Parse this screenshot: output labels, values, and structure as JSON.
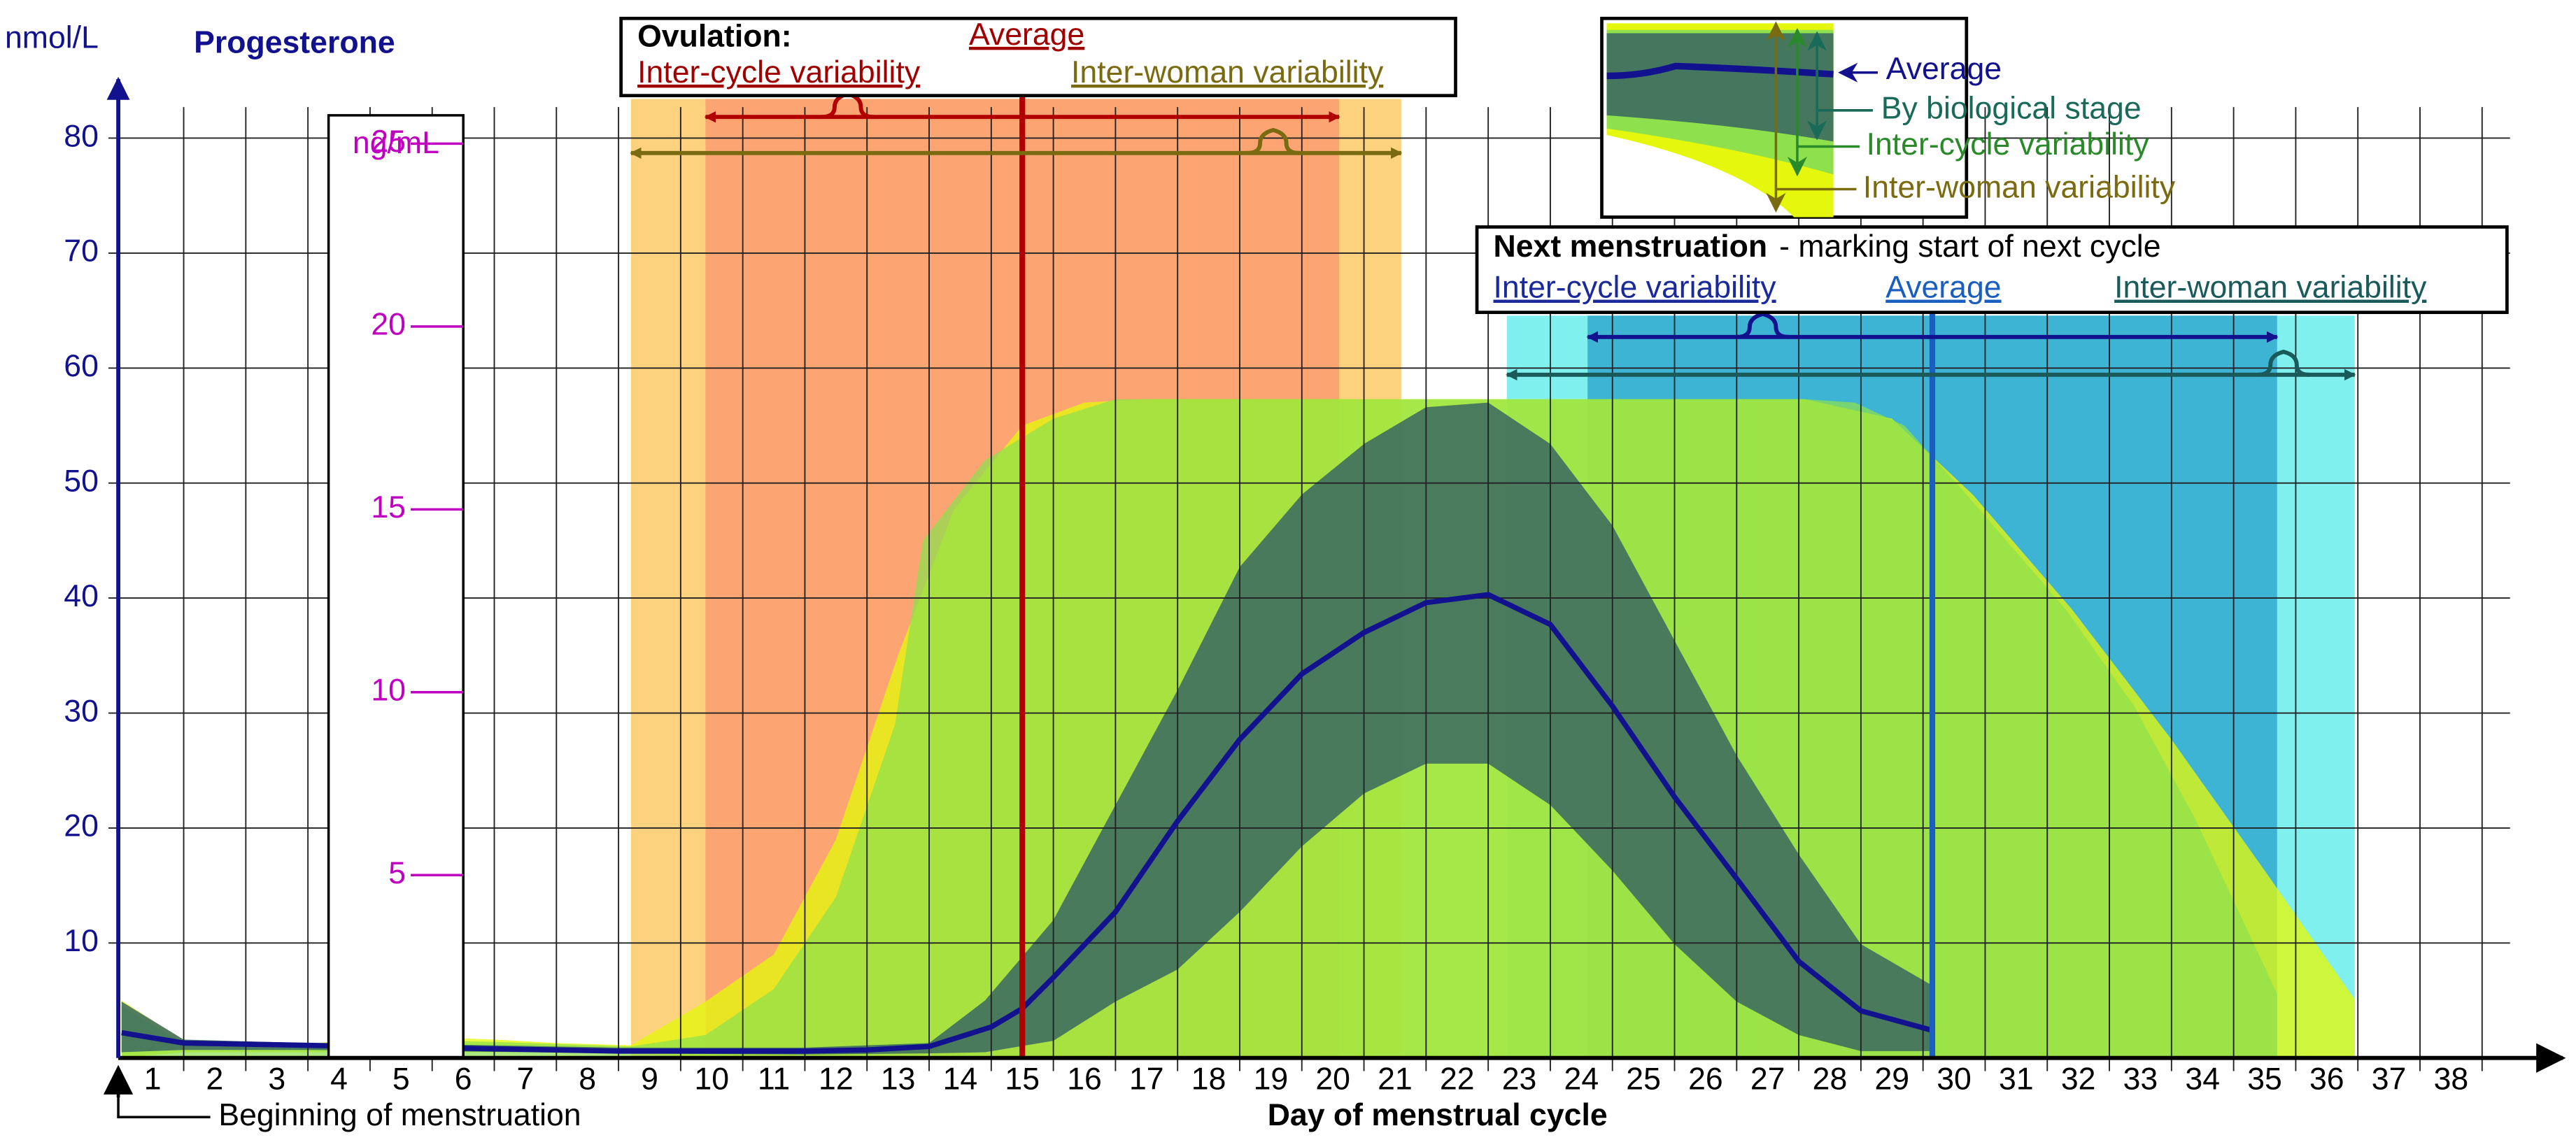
{
  "chart_data": {
    "type": "band",
    "title": "Progesterone",
    "y_label": "nmol/L",
    "y2_label": "ng/mL",
    "x_label": "Day of menstrual cycle",
    "start_label": "Beginning of menstruation",
    "xlim": [
      0.5,
      39.8
    ],
    "xticks": [
      1,
      2,
      3,
      4,
      5,
      6,
      7,
      8,
      9,
      10,
      11,
      12,
      13,
      14,
      15,
      16,
      17,
      18,
      19,
      20,
      21,
      22,
      23,
      24,
      25,
      26,
      27,
      28,
      29,
      30,
      31,
      32,
      33,
      34,
      35,
      36,
      37,
      38
    ],
    "xgrid": [
      1.5,
      2.5,
      3.5,
      4.5,
      5.5,
      6.5,
      7.5,
      8.5,
      9.5,
      10.5,
      11.5,
      12.5,
      13.5,
      14.5,
      15.5,
      16.5,
      17.5,
      18.5,
      19.5,
      20.5,
      21.5,
      22.5,
      23.5,
      24.5,
      25.5,
      26.5,
      27.5,
      28.5,
      29.5,
      30.5,
      31.5,
      32.5,
      33.5,
      34.5,
      35.5,
      36.5,
      37.5,
      38.5
    ],
    "ylim": [
      0,
      82.7
    ],
    "yticks": [
      10,
      20,
      30,
      40,
      50,
      60,
      70,
      80
    ],
    "y2lim": [
      0,
      26.0
    ],
    "y2ticks": [
      5,
      10,
      15,
      20,
      25
    ],
    "grid": true,
    "series": [
      {
        "name": "Inter-woman variability",
        "color": "#e4f70c",
        "x": [
          0.5,
          1.5,
          2.5,
          3.5,
          4.5,
          5.5,
          6.5,
          7.5,
          8.7,
          9.9,
          11,
          12,
          13,
          13.9,
          15,
          16,
          17,
          20,
          24,
          27.6,
          29,
          30.3,
          31.9,
          33.5,
          35,
          36.45
        ],
        "values": [
          5,
          1.5,
          1.3,
          1.2,
          1.8,
          1.8,
          1.6,
          1.3,
          1.1,
          4.9,
          9,
          19,
          35,
          47.7,
          55,
          57,
          57.3,
          57.3,
          57.3,
          57.3,
          55.6,
          49,
          39,
          27.7,
          16.3,
          5.1
        ],
        "lower": [
          0,
          0.5,
          0.5,
          0.5,
          0.5,
          0.5,
          0.5,
          0.5,
          0.5,
          0,
          0,
          0,
          0,
          0,
          0,
          0,
          0,
          0,
          0,
          0,
          0,
          0,
          0,
          0,
          0,
          0
        ]
      },
      {
        "name": "Inter-cycle variability",
        "color": "#8ee04c",
        "x": [
          0.5,
          1.5,
          3.5,
          4.5,
          6.5,
          8.7,
          9.9,
          11,
          12,
          12.95,
          13.4,
          14.4,
          15.5,
          16.5,
          20,
          24,
          27.6,
          28.4,
          29.2,
          30.2,
          31.8,
          32.9,
          33.9,
          35.2
        ],
        "values": [
          4.5,
          1.3,
          1.1,
          1.6,
          1.4,
          1,
          2,
          6,
          14,
          29,
          45,
          52,
          55.6,
          57.3,
          57.3,
          57.3,
          57.3,
          57,
          55,
          49,
          39,
          30.6,
          20.6,
          5.6
        ],
        "lower": [
          0,
          0,
          0,
          0,
          0,
          0,
          0,
          0,
          0,
          0,
          0,
          0,
          0,
          0,
          0,
          0,
          0,
          0,
          0,
          0,
          0,
          0,
          0,
          0
        ]
      },
      {
        "name": "By biological stage",
        "color": "#3d6b60",
        "x": [
          0.5,
          1.5,
          3.5,
          5.5,
          8.5,
          11.5,
          13.5,
          14.4,
          15.5,
          16.5,
          17.5,
          18.5,
          19.5,
          20.5,
          21.5,
          22.5,
          23.5,
          24.5,
          25.5,
          26.5,
          27.5,
          28.5,
          29.65
        ],
        "values": [
          4.9,
          1.6,
          1.3,
          1.2,
          0.9,
          0.9,
          1.3,
          5,
          12,
          22,
          32,
          42.7,
          49,
          53.4,
          56.6,
          57,
          53.4,
          46.3,
          36.3,
          26.3,
          17.7,
          9.9,
          6.3
        ],
        "lower": [
          0.5,
          0.7,
          0.7,
          0.6,
          0.4,
          0.3,
          0.4,
          0.5,
          1.5,
          4.9,
          7.7,
          12.7,
          18.4,
          23,
          25.6,
          25.6,
          22,
          16.3,
          9.9,
          4.9,
          2,
          0.6,
          0.6
        ]
      },
      {
        "name": "Average",
        "color": "#12128e",
        "x": [
          0.5,
          1.5,
          2.5,
          3.5,
          4.5,
          5.5,
          6.5,
          7.5,
          8.5,
          9.5,
          10.5,
          11.5,
          12.5,
          13.5,
          14.5,
          15,
          15.5,
          16.5,
          17.5,
          18.5,
          19.5,
          20.5,
          21.5,
          22.5,
          23.5,
          24.5,
          25.5,
          26.5,
          27.5,
          28.5,
          29.65
        ],
        "values": [
          2.2,
          1.3,
          1.2,
          1.1,
          1,
          0.9,
          0.8,
          0.7,
          0.6,
          0.6,
          0.6,
          0.6,
          0.7,
          1,
          2.7,
          4.3,
          7,
          12.7,
          20.6,
          27.7,
          33.4,
          37,
          39.6,
          40.3,
          37.7,
          30.6,
          22.7,
          15.6,
          8.4,
          4.1,
          2.4
        ]
      }
    ],
    "ovulation": {
      "label": "Ovulation:",
      "average_label": "Average",
      "average": 15,
      "average_color": "#b00000",
      "inter_cycle_label": "Inter-cycle variability",
      "inter_cycle": [
        9.9,
        20.1
      ],
      "inter_cycle_color": "#fca572",
      "inter_woman_label": "Inter-woman variability",
      "inter_woman": [
        8.7,
        21.1
      ],
      "inter_woman_color": "#fdd27e"
    },
    "next_menstruation": {
      "label": "Next menstruation",
      "note": "- marking start of next cycle",
      "average_label": "Average",
      "average": 29.65,
      "average_color": "#1a5fc0",
      "inter_cycle_label": "Inter-cycle variability",
      "inter_cycle": [
        24.1,
        35.2
      ],
      "inter_cycle_color": "#3db4d4",
      "inter_woman_label": "Inter-woman variability",
      "inter_woman": [
        22.8,
        36.45
      ],
      "inter_woman_color": "#7ff0ee"
    }
  }
}
